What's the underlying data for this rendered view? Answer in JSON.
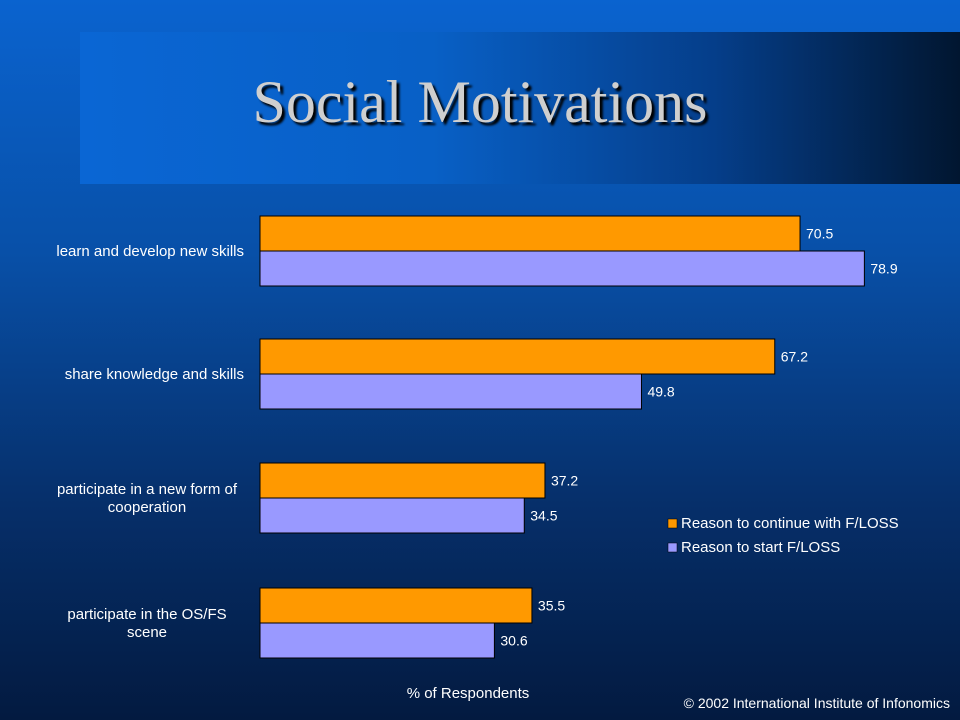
{
  "title": "Social Motivations",
  "footer": "© 2002 International Institute of Infonomics",
  "colors": {
    "continue": "#ff9900",
    "start": "#9999ff",
    "text": "#ffffff"
  },
  "chart_data": {
    "type": "bar",
    "orientation": "horizontal",
    "categories": [
      [
        "learn and develop new skills"
      ],
      [
        "share knowledge and skills"
      ],
      [
        "participate in a new form of",
        "cooperation"
      ],
      [
        "participate in the OS/FS",
        "scene"
      ]
    ],
    "series": [
      {
        "name": "Reason to continue with F/LOSS",
        "values": [
          70.5,
          67.2,
          37.2,
          35.5
        ],
        "color": "#ff9900"
      },
      {
        "name": "Reason to start F/LOSS",
        "values": [
          78.9,
          49.8,
          34.5,
          30.6
        ],
        "color": "#9999ff"
      }
    ],
    "xlabel": "% of Respondents",
    "ylabel": "",
    "xlim": [
      0,
      80
    ],
    "grid": false,
    "legend": "right"
  }
}
